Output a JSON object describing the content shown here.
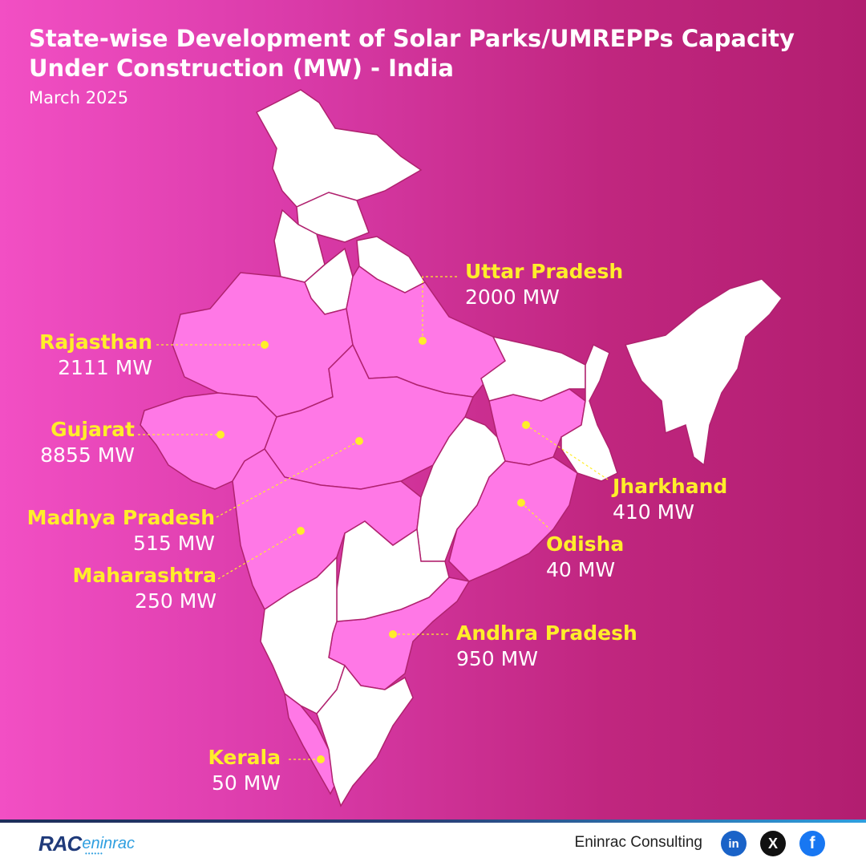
{
  "title": "State-wise Development of Solar Parks/UMREPPs Capacity Under Construction (MW) - India",
  "subtitle": "March 2025",
  "colors": {
    "background_left": "#f24fc4",
    "background_right": "#b21e70",
    "highlight_state": "#ff7ae6",
    "other_state": "#ffffff",
    "state_label": "#ffee2a",
    "value_label": "#ffffff"
  },
  "states": [
    {
      "name": "Uttar Pradesh",
      "value": "2000 MW"
    },
    {
      "name": "Rajasthan",
      "value": "2111 MW"
    },
    {
      "name": "Gujarat",
      "value": "8855 MW"
    },
    {
      "name": "Madhya Pradesh",
      "value": "515 MW"
    },
    {
      "name": "Maharashtra",
      "value": "250 MW"
    },
    {
      "name": "Jharkhand",
      "value": "410 MW"
    },
    {
      "name": "Odisha",
      "value": "40 MW"
    },
    {
      "name": "Andhra Pradesh",
      "value": "950 MW"
    },
    {
      "name": "Kerala",
      "value": "50 MW"
    }
  ],
  "footer": {
    "logo_text": "RAC",
    "logo_text_small": "eninrac",
    "company": "Eninrac Consulting",
    "social_icons": [
      "linkedin-icon",
      "x-icon",
      "facebook-icon"
    ],
    "linkedin_glyph": "in",
    "x_glyph": "X",
    "facebook_glyph": "f"
  }
}
